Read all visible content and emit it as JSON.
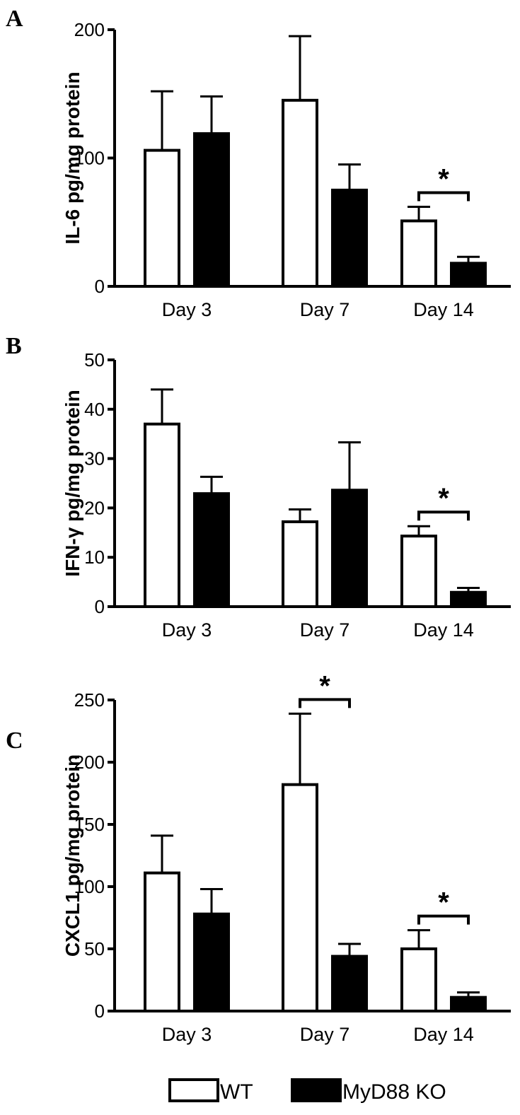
{
  "legend": [
    {
      "name": "WT",
      "fill": "#ffffff"
    },
    {
      "name": "MyD88 KO",
      "fill": "#000000"
    }
  ],
  "chart_data": [
    {
      "panel": "A",
      "type": "bar",
      "ylabel": "IL-6 pg/mg protein",
      "ylim": [
        0,
        200
      ],
      "yticks": [
        0,
        100,
        200
      ],
      "categories": [
        "Day 3",
        "Day 7",
        "Day 14"
      ],
      "series": [
        {
          "name": "WT",
          "values": [
            106,
            145,
            51
          ],
          "errors": [
            46,
            50,
            11
          ]
        },
        {
          "name": "MyD88 KO",
          "values": [
            119,
            75,
            18
          ],
          "errors": [
            29,
            20,
            5
          ]
        }
      ],
      "significance": [
        {
          "category_index": 2,
          "label": "*"
        }
      ]
    },
    {
      "panel": "B",
      "type": "bar",
      "ylabel": "IFN-γ pg/mg protein",
      "ylim": [
        0,
        50
      ],
      "yticks": [
        0,
        10,
        20,
        30,
        40,
        50
      ],
      "categories": [
        "Day 3",
        "Day 7",
        "Day 14"
      ],
      "series": [
        {
          "name": "WT",
          "values": [
            37,
            17.2,
            14.3
          ],
          "errors": [
            7,
            2.5,
            2
          ]
        },
        {
          "name": "MyD88 KO",
          "values": [
            22.9,
            23.6,
            2.9
          ],
          "errors": [
            3.4,
            9.7,
            0.9
          ]
        }
      ],
      "significance": [
        {
          "category_index": 2,
          "label": "*"
        }
      ]
    },
    {
      "panel": "C",
      "type": "bar",
      "ylabel": "CXCL1 pg/mg protein",
      "ylim": [
        0,
        250
      ],
      "yticks": [
        0,
        50,
        100,
        150,
        200,
        250
      ],
      "categories": [
        "Day 3",
        "Day 7",
        "Day 14"
      ],
      "series": [
        {
          "name": "WT",
          "values": [
            111,
            182,
            50
          ],
          "errors": [
            30,
            57,
            15
          ]
        },
        {
          "name": "MyD88 KO",
          "values": [
            78,
            44,
            11
          ],
          "errors": [
            20,
            10,
            4
          ]
        }
      ],
      "significance": [
        {
          "category_index": 1,
          "label": "*"
        },
        {
          "category_index": 2,
          "label": "*"
        }
      ]
    }
  ]
}
